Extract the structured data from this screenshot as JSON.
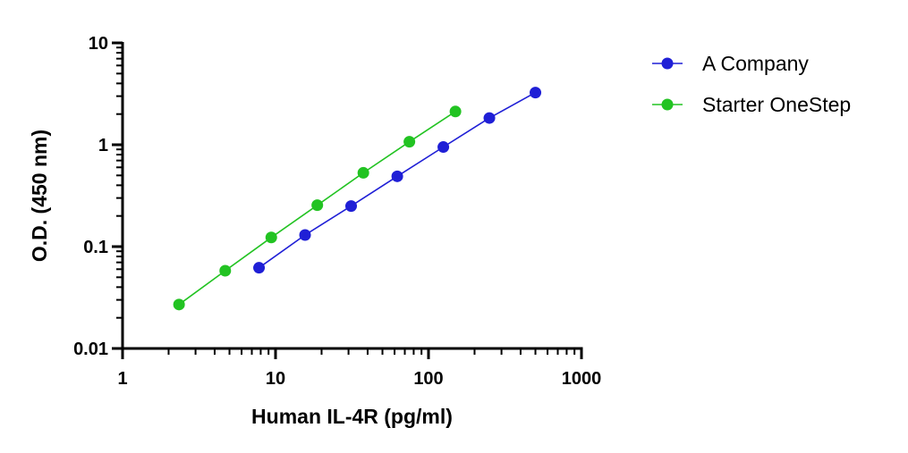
{
  "chart_data": {
    "type": "scatter",
    "title": "",
    "xlabel": "Human IL-4R (pg/ml)",
    "ylabel": "O.D. (450 nm)",
    "xscale": "log",
    "yscale": "log",
    "xlim": [
      1,
      1000
    ],
    "ylim": [
      0.01,
      10
    ],
    "xticks": [
      1,
      10,
      100,
      1000
    ],
    "xtick_labels": [
      "1",
      "10",
      "100",
      "1000"
    ],
    "yticks": [
      0.01,
      0.1,
      1,
      10
    ],
    "ytick_labels": [
      "0.01",
      "0.1",
      "1",
      "10"
    ],
    "grid": false,
    "legend_position": "right",
    "series": [
      {
        "name": "A Company",
        "color": "#1f1fd6",
        "x": [
          7.8,
          15.6,
          31.2,
          62.5,
          125,
          250,
          500
        ],
        "y": [
          0.062,
          0.13,
          0.25,
          0.49,
          0.95,
          1.83,
          3.25
        ]
      },
      {
        "name": "Starter OneStep",
        "color": "#22c322",
        "x": [
          2.34,
          4.69,
          9.38,
          18.75,
          37.5,
          75,
          150
        ],
        "y": [
          0.027,
          0.058,
          0.123,
          0.255,
          0.53,
          1.07,
          2.12
        ]
      }
    ]
  }
}
